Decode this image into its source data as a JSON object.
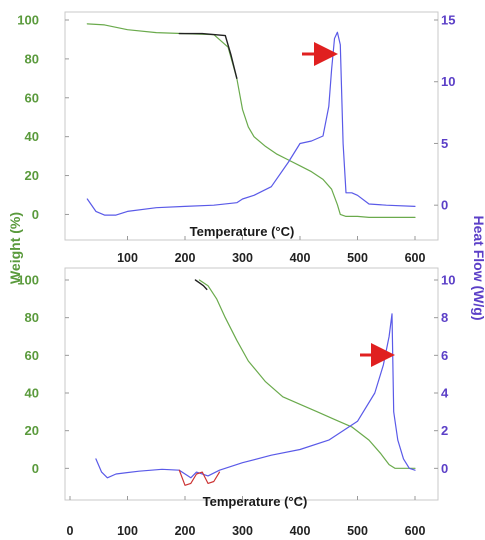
{
  "chart_data": [
    {
      "type": "line",
      "panel": "top",
      "xlabel": "Temperature (°C)",
      "x_ticks": [
        100,
        200,
        300,
        400,
        500,
        600
      ],
      "y_left_ticks": [
        0,
        20,
        40,
        60,
        80,
        100
      ],
      "y_right_ticks": [
        0,
        5,
        10,
        15
      ],
      "xlim": [
        0,
        600
      ],
      "ylim_left": [
        -8,
        100
      ],
      "ylim_right": [
        -1.2,
        15
      ],
      "colors": {
        "weight": "#6aaa4c",
        "heat": "#5a5ae8",
        "dark": "#222222",
        "arrow": "#e02020"
      },
      "series": [
        {
          "axis": "left",
          "color": "#6aaa4c",
          "x": [
            30,
            60,
            100,
            150,
            200,
            250,
            275,
            290,
            300,
            310,
            320,
            340,
            360,
            380,
            400,
            420,
            440,
            455,
            465,
            470,
            480,
            500,
            520,
            560,
            600
          ],
          "y": [
            98,
            97.5,
            95,
            93.5,
            93,
            92.5,
            86,
            70,
            54,
            45,
            40,
            35,
            31,
            28,
            25,
            22,
            18,
            13,
            5,
            0,
            -1,
            -1,
            -1.5,
            -1.5,
            -1.5
          ]
        },
        {
          "axis": "left",
          "color": "#222222",
          "x": [
            190,
            230,
            270,
            280,
            290
          ],
          "y": [
            93,
            93,
            92,
            82,
            70
          ]
        },
        {
          "axis": "right",
          "color": "#5a5ae8",
          "x": [
            30,
            45,
            60,
            80,
            100,
            150,
            200,
            250,
            290,
            300,
            320,
            350,
            380,
            400,
            420,
            440,
            450,
            455,
            460,
            465,
            470,
            475,
            480,
            490,
            500,
            520,
            550,
            600
          ],
          "y": [
            0.5,
            -0.5,
            -0.8,
            -0.8,
            -0.5,
            -0.2,
            -0.1,
            0,
            0.2,
            0.5,
            0.8,
            1.5,
            3.5,
            5,
            5.2,
            5.6,
            8,
            11,
            13.5,
            14,
            13,
            5,
            1,
            1,
            0.8,
            0.1,
            0,
            -0.1
          ]
        }
      ],
      "annotations": [
        {
          "type": "arrow",
          "points_to": [
            465,
            13.3
          ],
          "color": "#e02020"
        }
      ]
    },
    {
      "type": "line",
      "panel": "bottom",
      "xlabel": "Temperature (°C)",
      "x_ticks": [
        0,
        100,
        200,
        300,
        400,
        500,
        600
      ],
      "y_left_ticks": [
        0,
        20,
        40,
        60,
        80,
        100
      ],
      "y_right_ticks": [
        0,
        2,
        4,
        6,
        8,
        10
      ],
      "xlim": [
        0,
        600
      ],
      "ylim_left": [
        -3,
        100
      ],
      "ylim_right": [
        -0.3,
        10
      ],
      "colors": {
        "weight": "#6aaa4c",
        "heat": "#5a5ae8",
        "dark": "#222222",
        "red": "#cc3333",
        "arrow": "#e02020"
      },
      "series": [
        {
          "axis": "left",
          "color": "#6aaa4c",
          "x": [
            225,
            240,
            255,
            270,
            290,
            310,
            340,
            370,
            400,
            430,
            460,
            490,
            520,
            540,
            555,
            565,
            580,
            600
          ],
          "y": [
            100,
            97,
            90,
            80,
            68,
            57,
            46,
            38,
            34,
            30,
            26,
            22,
            15,
            8,
            2,
            0,
            0,
            0
          ]
        },
        {
          "axis": "left",
          "color": "#222222",
          "x": [
            218,
            225,
            232,
            238
          ],
          "y": [
            100,
            98.5,
            97,
            95
          ]
        },
        {
          "axis": "right",
          "color": "#5a5ae8",
          "x": [
            45,
            55,
            65,
            80,
            120,
            160,
            190,
            210,
            220,
            240,
            260,
            300,
            350,
            400,
            450,
            500,
            530,
            545,
            555,
            560,
            563,
            570,
            580,
            590,
            600
          ],
          "y": [
            0.5,
            -0.2,
            -0.5,
            -0.3,
            -0.15,
            -0.05,
            -0.1,
            -0.5,
            -0.2,
            -0.4,
            -0.1,
            0.3,
            0.7,
            1,
            1.5,
            2.5,
            4,
            5.5,
            7,
            8.2,
            3,
            1.5,
            0.5,
            0,
            -0.1
          ]
        },
        {
          "axis": "right",
          "color": "#cc3333",
          "x": [
            190,
            200,
            210,
            220,
            230,
            240,
            250,
            260
          ],
          "y": [
            -0.1,
            -0.9,
            -0.8,
            -0.3,
            -0.2,
            -0.8,
            -0.7,
            -0.2
          ]
        }
      ],
      "annotations": [
        {
          "type": "arrow",
          "points_to": [
            555,
            8
          ],
          "color": "#e02020"
        }
      ]
    }
  ],
  "shared": {
    "ylabel_left": "Weight (%)",
    "ylabel_right": "Heat Flow (W/g)"
  }
}
